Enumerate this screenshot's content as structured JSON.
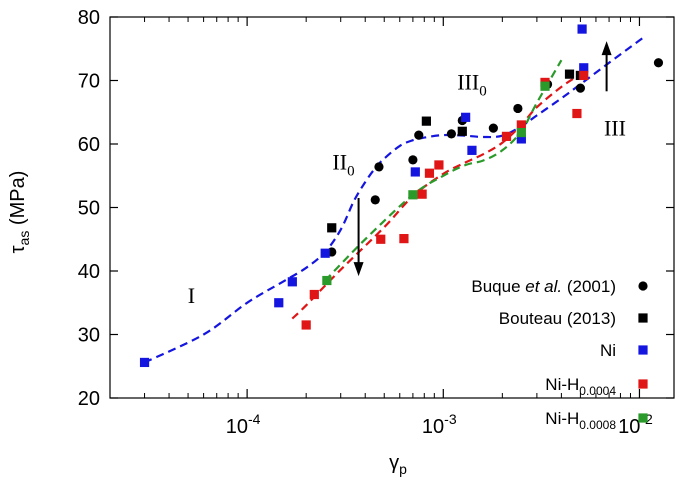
{
  "chart_data": {
    "type": "scatter",
    "xscale": "log",
    "xlim": [
      2e-05,
      0.015
    ],
    "ylim": [
      20,
      80
    ],
    "grid": false,
    "legend_position": "bottom-right",
    "xlabel": {
      "base": "γ",
      "sub": "p"
    },
    "ylabel": {
      "base": "τ",
      "sub": "as",
      "unit": " (MPa)"
    },
    "yticks": [
      20,
      30,
      40,
      50,
      60,
      70,
      80
    ],
    "xticks": [
      {
        "value": 0.0001,
        "base": "10",
        "exp": "-4"
      },
      {
        "value": 0.001,
        "base": "10",
        "exp": "-3"
      },
      {
        "value": 0.01,
        "base": "10",
        "exp": "-2"
      }
    ],
    "series": [
      {
        "key": "buque",
        "label_pre": "Buque ",
        "label_em": "et al.",
        "label_post": " (2001)",
        "marker": "circle",
        "color": "#000000",
        "points": [
          [
            0.00027,
            43
          ],
          [
            0.00045,
            51.2
          ],
          [
            0.00047,
            56.4
          ],
          [
            0.0007,
            57.5
          ],
          [
            0.00075,
            61.4
          ],
          [
            0.0011,
            61.6
          ],
          [
            0.00125,
            63.7
          ],
          [
            0.0018,
            62.5
          ],
          [
            0.0024,
            65.6
          ],
          [
            0.0034,
            69.4
          ],
          [
            0.005,
            68.8
          ],
          [
            0.0125,
            72.8
          ]
        ]
      },
      {
        "key": "bouteau",
        "label_pre": "Bouteau (2013)",
        "marker": "square",
        "color": "#000000",
        "points": [
          [
            0.00027,
            46.8
          ],
          [
            0.00082,
            63.6
          ],
          [
            0.00125,
            62
          ],
          [
            0.0044,
            71
          ],
          [
            0.005,
            70.8
          ]
        ]
      },
      {
        "key": "ni",
        "label_pre": "Ni",
        "marker": "square",
        "color": "#1515e0",
        "points": [
          [
            3e-05,
            25.6
          ],
          [
            0.000145,
            35
          ],
          [
            0.00017,
            38.3
          ],
          [
            0.00025,
            42.8
          ],
          [
            0.00072,
            55.6
          ],
          [
            0.0013,
            64.2
          ],
          [
            0.0014,
            59
          ],
          [
            0.0025,
            60.8
          ],
          [
            0.0051,
            78.1
          ],
          [
            0.0052,
            72
          ]
        ]
      },
      {
        "key": "nih4",
        "label_pre": "Ni-H",
        "label_sub": "0.0004",
        "marker": "square",
        "color": "#e01515",
        "points": [
          [
            0.0002,
            31.5
          ],
          [
            0.00022,
            36.3
          ],
          [
            0.00048,
            45
          ],
          [
            0.00063,
            45.1
          ],
          [
            0.00078,
            52.1
          ],
          [
            0.00085,
            55.4
          ],
          [
            0.00095,
            56.7
          ],
          [
            0.0021,
            61.2
          ],
          [
            0.0025,
            63
          ],
          [
            0.0033,
            69.7
          ],
          [
            0.0048,
            64.8
          ],
          [
            0.0052,
            70.8
          ]
        ]
      },
      {
        "key": "nih8",
        "label_pre": "Ni-H",
        "label_sub": "0.0008",
        "marker": "square",
        "color": "#2a9a2a",
        "points": [
          [
            0.000255,
            38.5
          ],
          [
            0.0007,
            52
          ],
          [
            0.0025,
            61.8
          ],
          [
            0.0033,
            69.1
          ]
        ]
      }
    ],
    "fits": [
      {
        "key": "ni",
        "color": "#1515e0",
        "points": [
          [
            3e-05,
            25.6
          ],
          [
            6e-05,
            30
          ],
          [
            0.0001,
            35
          ],
          [
            0.00015,
            38.2
          ],
          [
            0.0002,
            40.5
          ],
          [
            0.00025,
            43
          ],
          [
            0.0003,
            46.5
          ],
          [
            0.00035,
            51
          ],
          [
            0.0004,
            54
          ],
          [
            0.00045,
            56.2
          ],
          [
            0.0005,
            57.7
          ],
          [
            0.0006,
            59.7
          ],
          [
            0.0007,
            60.6
          ],
          [
            0.0008,
            61
          ],
          [
            0.001,
            61.4
          ],
          [
            0.0013,
            61.3
          ],
          [
            0.0016,
            61.1
          ],
          [
            0.002,
            61.3
          ],
          [
            0.0025,
            62.8
          ],
          [
            0.003,
            64.5
          ],
          [
            0.004,
            67.2
          ],
          [
            0.005,
            69.4
          ],
          [
            0.007,
            72.8
          ],
          [
            0.0105,
            76.8
          ]
        ]
      },
      {
        "key": "nih4",
        "color": "#e01515",
        "points": [
          [
            0.00017,
            32.5
          ],
          [
            0.0002,
            34.6
          ],
          [
            0.0003,
            40.2
          ],
          [
            0.0005,
            46.9
          ],
          [
            0.0007,
            51.8
          ],
          [
            0.001,
            55.3
          ],
          [
            0.0013,
            57.1
          ],
          [
            0.0016,
            58.4
          ],
          [
            0.002,
            60.2
          ],
          [
            0.0025,
            63
          ],
          [
            0.003,
            65.8
          ],
          [
            0.004,
            69
          ],
          [
            0.005,
            71
          ]
        ]
      },
      {
        "key": "nih8",
        "color": "#2a9a2a",
        "points": [
          [
            0.00025,
            38.5
          ],
          [
            0.0004,
            45
          ],
          [
            0.0007,
            52
          ],
          [
            0.001,
            55
          ],
          [
            0.0013,
            56.7
          ],
          [
            0.0016,
            57.4
          ],
          [
            0.002,
            59
          ],
          [
            0.0025,
            62
          ],
          [
            0.003,
            66.5
          ],
          [
            0.004,
            73.2
          ]
        ]
      }
    ],
    "annotations": [
      {
        "key": "I",
        "text": "I",
        "x": 5.2e-05,
        "y": 35
      },
      {
        "key": "II0",
        "text": "II",
        "sub": "0",
        "x": 0.00031,
        "y": 56
      },
      {
        "key": "III0",
        "text": "III",
        "sub": "0",
        "x": 0.0014,
        "y": 68.6
      },
      {
        "key": "III",
        "text": "III",
        "x": 0.0075,
        "y": 61.3
      }
    ],
    "arrows": [
      {
        "key": "down",
        "x": 0.00037,
        "y_from": 51.5,
        "y_to": 39.2
      },
      {
        "key": "up",
        "x": 0.0068,
        "y_from": 68.3,
        "y_to": 76.2
      }
    ]
  }
}
